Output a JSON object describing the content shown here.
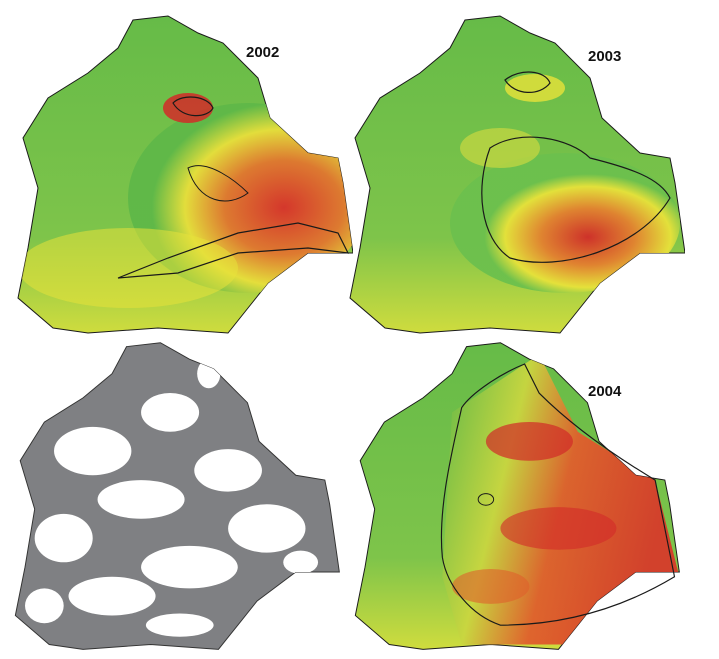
{
  "maps": [
    {
      "id": "map-2002",
      "year_label": "2002",
      "style": "heat"
    },
    {
      "id": "map-2003",
      "year_label": "2003",
      "style": "heat"
    },
    {
      "id": "map-landcover",
      "year_label": "",
      "style": "mask"
    },
    {
      "id": "map-2004",
      "year_label": "2004",
      "style": "heat"
    }
  ],
  "colors": {
    "low": "#5fb848",
    "mid": "#e8e23a",
    "high": "#e0382b",
    "mask_fill": "#7f8083",
    "mask_holes": "#ffffff",
    "outline": "#1a1a1a"
  }
}
